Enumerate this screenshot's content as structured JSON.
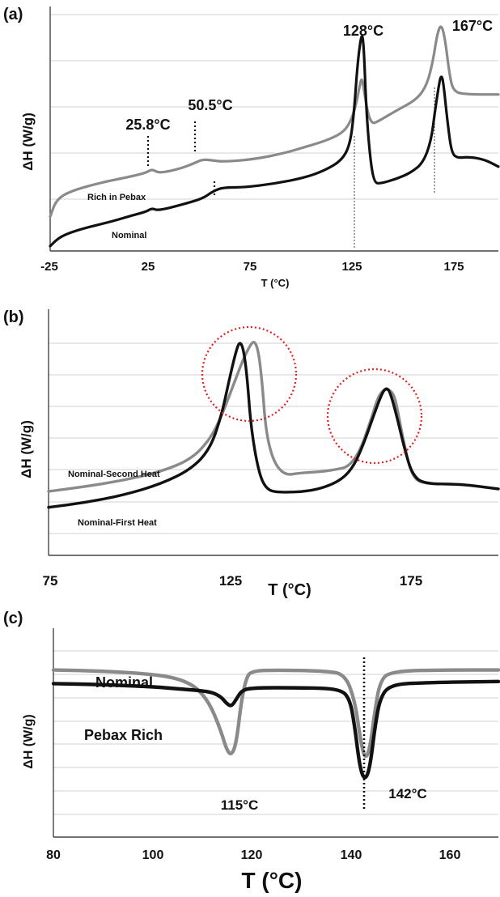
{
  "chart_data": [
    {
      "panel": "(a)",
      "type": "line",
      "xlabel": "T (°C)",
      "ylabel": "ΔH (W/g)",
      "xlim": [
        -25,
        195
      ],
      "xticks": [
        "-25",
        "25",
        "75",
        "125",
        "175"
      ],
      "ylim": [
        0,
        10
      ],
      "grid": "horizontal",
      "series": [
        {
          "name": "Rich in Pebax",
          "color": "#8a8a8a",
          "points": [
            [
              -25,
              1.4
            ],
            [
              -22,
              2.1
            ],
            [
              -15,
              2.45
            ],
            [
              0,
              2.8
            ],
            [
              15,
              3.05
            ],
            [
              22,
              3.2
            ],
            [
              25,
              3.35
            ],
            [
              28,
              3.2
            ],
            [
              33,
              3.25
            ],
            [
              40,
              3.4
            ],
            [
              46,
              3.6
            ],
            [
              50,
              3.75
            ],
            [
              55,
              3.7
            ],
            [
              60,
              3.65
            ],
            [
              75,
              3.75
            ],
            [
              90,
              4.0
            ],
            [
              100,
              4.25
            ],
            [
              110,
              4.5
            ],
            [
              118,
              4.8
            ],
            [
              122,
              5.2
            ],
            [
              125,
              5.9
            ],
            [
              127,
              6.8
            ],
            [
              128,
              7.1
            ],
            [
              129,
              6.6
            ],
            [
              131,
              5.6
            ],
            [
              133,
              5.2
            ],
            [
              136,
              5.3
            ],
            [
              145,
              5.75
            ],
            [
              155,
              6.2
            ],
            [
              160,
              6.8
            ],
            [
              163,
              7.8
            ],
            [
              165,
              8.9
            ],
            [
              167,
              9.3
            ],
            [
              169,
              8.6
            ],
            [
              171,
              7.2
            ],
            [
              173,
              6.5
            ],
            [
              180,
              6.4
            ],
            [
              195,
              6.4
            ]
          ]
        },
        {
          "name": "Nominal",
          "color": "#111111",
          "points": [
            [
              -25,
              0.2
            ],
            [
              -20,
              0.6
            ],
            [
              -10,
              0.9
            ],
            [
              5,
              1.2
            ],
            [
              15,
              1.45
            ],
            [
              22,
              1.6
            ],
            [
              25,
              1.75
            ],
            [
              28,
              1.65
            ],
            [
              40,
              1.9
            ],
            [
              50,
              2.15
            ],
            [
              55,
              2.45
            ],
            [
              60,
              2.6
            ],
            [
              70,
              2.6
            ],
            [
              85,
              2.75
            ],
            [
              100,
              3.0
            ],
            [
              110,
              3.3
            ],
            [
              118,
              3.7
            ],
            [
              122,
              4.3
            ],
            [
              124,
              5.5
            ],
            [
              126,
              7.8
            ],
            [
              128,
              9.0
            ],
            [
              129,
              8.3
            ],
            [
              130,
              6.0
            ],
            [
              132,
              3.8
            ],
            [
              134,
              2.8
            ],
            [
              137,
              2.75
            ],
            [
              145,
              2.95
            ],
            [
              152,
              3.2
            ],
            [
              158,
              3.6
            ],
            [
              162,
              4.5
            ],
            [
              164,
              5.8
            ],
            [
              166,
              6.9
            ],
            [
              167,
              7.2
            ],
            [
              168,
              6.9
            ],
            [
              170,
              5.3
            ],
            [
              172,
              4.0
            ],
            [
              175,
              3.8
            ],
            [
              180,
              3.85
            ],
            [
              188,
              3.75
            ],
            [
              195,
              3.45
            ]
          ]
        }
      ],
      "annotations": [
        "128°C",
        "167°C",
        "25.8°C",
        "50.5°C"
      ],
      "series_labels": [
        "Rich in Pebax",
        "Nominal"
      ]
    },
    {
      "panel": "(b)",
      "type": "line",
      "xlabel": "T (°C)",
      "ylabel": "ΔH (W/g)",
      "xlim": [
        75,
        195
      ],
      "xticks": [
        "75",
        "125",
        "175"
      ],
      "ylim": [
        0,
        10
      ],
      "grid": "horizontal",
      "series": [
        {
          "name": "Nominal-Second  Heat",
          "color": "#8a8a8a",
          "points": [
            [
              75,
              2.6
            ],
            [
              85,
              2.8
            ],
            [
              95,
              3.05
            ],
            [
              105,
              3.4
            ],
            [
              113,
              3.9
            ],
            [
              118,
              4.7
            ],
            [
              121,
              5.6
            ],
            [
              124,
              6.8
            ],
            [
              127,
              8.0
            ],
            [
              129,
              8.6
            ],
            [
              130,
              8.7
            ],
            [
              131,
              8.3
            ],
            [
              132,
              7.0
            ],
            [
              133,
              5.0
            ],
            [
              135,
              3.8
            ],
            [
              138,
              3.25
            ],
            [
              142,
              3.35
            ],
            [
              148,
              3.4
            ],
            [
              152,
              3.5
            ],
            [
              155,
              3.6
            ],
            [
              158,
              4.2
            ],
            [
              161,
              5.5
            ],
            [
              163,
              6.5
            ],
            [
              165,
              6.8
            ],
            [
              167,
              6.6
            ],
            [
              168,
              6.0
            ],
            [
              170,
              4.4
            ],
            [
              172,
              3.2
            ],
            [
              175,
              2.9
            ],
            [
              185,
              2.9
            ],
            [
              195,
              2.7
            ]
          ]
        },
        {
          "name": "Nominal-First Heat",
          "color": "#111111",
          "points": [
            [
              75,
              1.95
            ],
            [
              85,
              2.15
            ],
            [
              95,
              2.45
            ],
            [
              105,
              2.9
            ],
            [
              113,
              3.5
            ],
            [
              118,
              4.3
            ],
            [
              121,
              5.6
            ],
            [
              123,
              7.0
            ],
            [
              125,
              8.3
            ],
            [
              126,
              8.7
            ],
            [
              127,
              8.4
            ],
            [
              128,
              7.2
            ],
            [
              129,
              5.2
            ],
            [
              131,
              3.4
            ],
            [
              133,
              2.7
            ],
            [
              136,
              2.55
            ],
            [
              145,
              2.6
            ],
            [
              152,
              2.95
            ],
            [
              156,
              3.5
            ],
            [
              159,
              4.5
            ],
            [
              162,
              5.8
            ],
            [
              164,
              6.6
            ],
            [
              165,
              6.8
            ],
            [
              166,
              6.7
            ],
            [
              168,
              5.6
            ],
            [
              170,
              4.3
            ],
            [
              172,
              3.3
            ],
            [
              175,
              2.9
            ],
            [
              185,
              2.9
            ],
            [
              195,
              2.7
            ]
          ]
        }
      ],
      "series_labels": [
        "Nominal-Second  Heat",
        "Nominal-First Heat"
      ]
    },
    {
      "panel": "(c)",
      "type": "line",
      "xlabel": "T (°C)",
      "ylabel": "ΔH (W/g)",
      "xlim": [
        80,
        170
      ],
      "xticks": [
        "80",
        "100",
        "120",
        "140",
        "160"
      ],
      "ylim": [
        0,
        10
      ],
      "grid": "horizontal",
      "series": [
        {
          "name": "Nominal",
          "color": "#8a8a8a",
          "points": [
            [
              80,
              8.0
            ],
            [
              90,
              7.95
            ],
            [
              100,
              7.8
            ],
            [
              105,
              7.6
            ],
            [
              108,
              7.3
            ],
            [
              110,
              6.9
            ],
            [
              112,
              6.2
            ],
            [
              114,
              5.0
            ],
            [
              115,
              4.2
            ],
            [
              116,
              3.9
            ],
            [
              117,
              4.5
            ],
            [
              118,
              6.5
            ],
            [
              119,
              7.6
            ],
            [
              120,
              7.95
            ],
            [
              125,
              8.0
            ],
            [
              135,
              7.95
            ],
            [
              139,
              7.8
            ],
            [
              141,
              6.5
            ],
            [
              142,
              4.8
            ],
            [
              143,
              3.7
            ],
            [
              144,
              4.2
            ],
            [
              145,
              6.0
            ],
            [
              146,
              7.4
            ],
            [
              148,
              7.95
            ],
            [
              160,
              8.0
            ],
            [
              170,
              8.0
            ]
          ]
        },
        {
          "name": "Pebax Rich",
          "color": "#111111",
          "points": [
            [
              80,
              7.35
            ],
            [
              90,
              7.3
            ],
            [
              100,
              7.2
            ],
            [
              105,
              7.1
            ],
            [
              108,
              7.05
            ],
            [
              112,
              6.95
            ],
            [
              114,
              6.7
            ],
            [
              115,
              6.4
            ],
            [
              116,
              6.25
            ],
            [
              117,
              6.6
            ],
            [
              118,
              7.0
            ],
            [
              120,
              7.15
            ],
            [
              130,
              7.15
            ],
            [
              138,
              7.1
            ],
            [
              140,
              6.6
            ],
            [
              141,
              5.2
            ],
            [
              142,
              3.3
            ],
            [
              143,
              2.7
            ],
            [
              144,
              3.3
            ],
            [
              145,
              5.2
            ],
            [
              146,
              6.6
            ],
            [
              148,
              7.3
            ],
            [
              155,
              7.4
            ],
            [
              170,
              7.45
            ]
          ]
        }
      ],
      "annotations": [
        "115°C",
        "142°C"
      ],
      "series_labels": [
        "Nominal",
        "Pebax Rich"
      ]
    }
  ]
}
